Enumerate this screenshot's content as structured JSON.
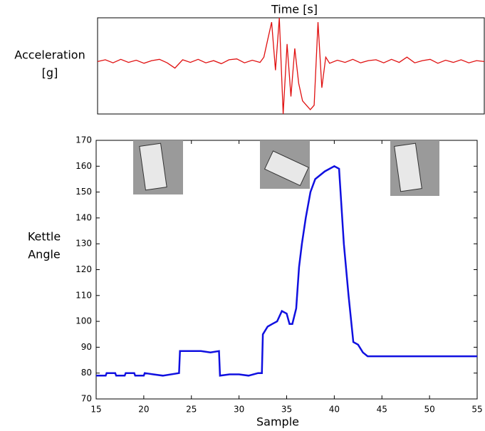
{
  "chart_data": [
    {
      "type": "line",
      "title": "Time [s]",
      "y_label": [
        "Acceleration",
        "[g]"
      ],
      "color": "#e01010",
      "xlim": [
        0,
        100
      ],
      "ylim": [
        -1.2,
        1.0
      ],
      "x": [
        0,
        2,
        4,
        6,
        8,
        10,
        12,
        14,
        16,
        18,
        20,
        22,
        24,
        26,
        28,
        30,
        32,
        34,
        36,
        38,
        40,
        42,
        43,
        44,
        45,
        46,
        47,
        48,
        49,
        50,
        51,
        52,
        53,
        54,
        55,
        56,
        57,
        58,
        59,
        60,
        62,
        64,
        66,
        68,
        70,
        72,
        74,
        76,
        78,
        80,
        82,
        84,
        86,
        88,
        90,
        92,
        94,
        96,
        98,
        100
      ],
      "values": [
        0.0,
        0.04,
        -0.03,
        0.05,
        -0.02,
        0.03,
        -0.04,
        0.02,
        0.05,
        -0.03,
        -0.15,
        0.04,
        -0.02,
        0.05,
        -0.03,
        0.02,
        -0.05,
        0.04,
        0.06,
        -0.03,
        0.03,
        -0.02,
        0.1,
        0.5,
        0.9,
        -0.2,
        1.0,
        -1.2,
        0.4,
        -0.8,
        0.3,
        -0.5,
        -0.9,
        -1.0,
        -1.1,
        -1.0,
        0.9,
        -0.6,
        0.1,
        -0.04,
        0.03,
        -0.02,
        0.05,
        -0.03,
        0.02,
        0.04,
        -0.03,
        0.05,
        -0.02,
        0.1,
        -0.03,
        0.02,
        0.05,
        -0.04,
        0.03,
        -0.02,
        0.04,
        -0.03,
        0.02,
        0.0
      ]
    },
    {
      "type": "line",
      "x_label": "Sample",
      "y_label": [
        "Kettle",
        "Angle"
      ],
      "color": "#1010e0",
      "xlim": [
        15,
        55
      ],
      "ylim": [
        70,
        170
      ],
      "xticks": [
        15,
        20,
        25,
        30,
        35,
        40,
        45,
        50,
        55
      ],
      "yticks": [
        70,
        80,
        90,
        100,
        110,
        120,
        130,
        140,
        150,
        160,
        170
      ],
      "x": [
        15,
        16,
        16.1,
        17,
        17.1,
        18,
        18.1,
        19,
        19.1,
        20,
        20.1,
        21,
        22,
        23.7,
        23.8,
        25,
        26,
        27,
        27.9,
        28,
        29,
        30,
        31,
        32,
        32.4,
        32.5,
        33,
        33.5,
        34,
        34.5,
        35,
        35.3,
        35.6,
        36,
        36.3,
        36.6,
        37,
        37.5,
        38,
        39,
        40,
        40.5,
        41,
        41.5,
        42,
        42.5,
        43,
        43.5,
        55
      ],
      "values": [
        79,
        79,
        80,
        80,
        79,
        79,
        80,
        80,
        79,
        79,
        80,
        79.5,
        79,
        80,
        88.5,
        88.5,
        88.5,
        88,
        88.5,
        79,
        79.5,
        79.5,
        79,
        80,
        80,
        95,
        98,
        99,
        100,
        104,
        103,
        99,
        99,
        105,
        121,
        130,
        140,
        150,
        155,
        158,
        160,
        159,
        130,
        110,
        92,
        91,
        88,
        86.5,
        86.5
      ]
    }
  ]
}
